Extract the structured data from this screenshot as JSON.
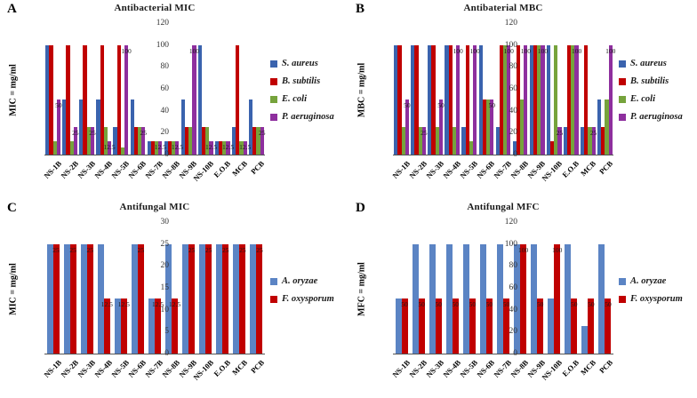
{
  "figure": {
    "background": "#ffffff",
    "axis_color": "#555555",
    "series_colors": {
      "S. aureus": "#3A63AE",
      "B. subtilis": "#C00000",
      "E. coli": "#76A33C",
      "P. aeruginosa": "#8E2F9E",
      "A. oryzae": "#5B84C4",
      "F. oxysporum": "#C00000"
    }
  },
  "chart_data": [
    {
      "type": "bar",
      "panel_letter": "A",
      "title": "Antibacterial MIC",
      "ylabel": "MIC = mg/ml",
      "ylim": [
        0,
        120
      ],
      "ytick_step": 20,
      "grid": false,
      "legend_position": "right",
      "categories": [
        "NS-1B",
        "NS-2B",
        "NS-3B",
        "NS-4B",
        "NS-5B",
        "NS-6B",
        "NS-7B",
        "NS-8B",
        "NS-9B",
        "NS-10B",
        "E.O.B",
        "MCB",
        "PCB"
      ],
      "series": [
        {
          "name": "S. aureus",
          "color": "#3A63AE",
          "values": [
            100,
            50,
            50,
            50,
            25,
            50,
            12.5,
            12.5,
            50,
            100,
            12.5,
            25,
            50
          ]
        },
        {
          "name": "B. subtilis",
          "color": "#C00000",
          "values": [
            100,
            100,
            100,
            100,
            100,
            25,
            12.5,
            12.5,
            25,
            25,
            12.5,
            100,
            25
          ]
        },
        {
          "name": "E. coli",
          "color": "#76A33C",
          "values": [
            12.5,
            12.5,
            25,
            25,
            6.25,
            25,
            12.5,
            12.5,
            25,
            25,
            12.5,
            12.5,
            25
          ]
        },
        {
          "name": "P. aeruginosa",
          "color": "#8E2F9E",
          "values": [
            50,
            25,
            25,
            12.5,
            100,
            25,
            12.5,
            12.5,
            100,
            12.5,
            12.5,
            12.5,
            25
          ]
        }
      ],
      "data_labels_series": "P. aeruginosa",
      "data_labels": [
        "50",
        "25",
        "25",
        "12.5",
        "100",
        "25",
        "12.5",
        "12.5",
        "100",
        "12.5",
        "12.5",
        "12.5",
        "25"
      ]
    },
    {
      "type": "bar",
      "panel_letter": "B",
      "title": "Antibaterial MBC",
      "ylabel": "MBC = mg/ml",
      "ylim": [
        0,
        120
      ],
      "ytick_step": 20,
      "grid": false,
      "legend_position": "right",
      "categories": [
        "NS-1B",
        "NS-2B",
        "NS-3B",
        "NS-4B",
        "NS-5B",
        "NS-6B",
        "NS-7B",
        "NS-8B",
        "NS-9B",
        "NS-10B",
        "E.O.B",
        "MCB",
        "PCB"
      ],
      "series": [
        {
          "name": "S. aureus",
          "color": "#3A63AE",
          "values": [
            100,
            100,
            100,
            100,
            25,
            100,
            25,
            12.5,
            100,
            100,
            25,
            25,
            50
          ]
        },
        {
          "name": "B. subtilis",
          "color": "#C00000",
          "values": [
            100,
            100,
            100,
            100,
            100,
            50,
            100,
            100,
            100,
            12.5,
            100,
            100,
            25
          ]
        },
        {
          "name": "E. coli",
          "color": "#76A33C",
          "values": [
            25,
            25,
            25,
            25,
            12.5,
            50,
            100,
            50,
            100,
            100,
            100,
            25,
            50
          ]
        },
        {
          "name": "P. aeruginosa",
          "color": "#8E2F9E",
          "values": [
            50,
            25,
            50,
            100,
            100,
            50,
            100,
            100,
            100,
            25,
            100,
            25,
            100
          ]
        }
      ],
      "data_labels_series": "P. aeruginosa",
      "data_labels": [
        "50",
        "25",
        "50",
        "100",
        "100",
        "50",
        "100",
        "100",
        "100",
        "25",
        "100",
        "25",
        "100"
      ]
    },
    {
      "type": "bar",
      "panel_letter": "C",
      "title": "Antifungal MIC",
      "ylabel": "MIC = mg/ml",
      "ylim": [
        0,
        30
      ],
      "ytick_step": 5,
      "grid": false,
      "legend_position": "right",
      "categories": [
        "NS-1B",
        "NS-2B",
        "NS-3B",
        "NS-4B",
        "NS-5B",
        "NS-6B",
        "NS-7B",
        "NS-8B",
        "NS-9B",
        "NS-10B",
        "E.O.B",
        "MCB",
        "PCB"
      ],
      "series": [
        {
          "name": "A. oryzae",
          "color": "#5B84C4",
          "values": [
            25,
            25,
            25,
            25,
            12.5,
            25,
            12.5,
            25,
            25,
            25,
            25,
            25,
            25
          ]
        },
        {
          "name": "F. oxysporum",
          "color": "#C00000",
          "values": [
            25,
            25,
            25,
            12.5,
            12.5,
            25,
            12.5,
            12.5,
            25,
            25,
            25,
            25,
            25
          ]
        }
      ],
      "data_labels_series": "F. oxysporum",
      "data_labels": [
        "25",
        "25",
        "25",
        "12.5",
        "12.5",
        "25",
        "12.5",
        "12.5",
        "25",
        "25",
        "25",
        "25",
        "25"
      ]
    },
    {
      "type": "bar",
      "panel_letter": "D",
      "title": "Antifungal MFC",
      "ylabel": "MFC = mg/ml",
      "ylim": [
        0,
        120
      ],
      "ytick_step": 20,
      "grid": false,
      "legend_position": "right",
      "categories": [
        "NS-1B",
        "NS-2B",
        "NS-3B",
        "NS-4B",
        "NS-5B",
        "NS-6B",
        "NS-7B",
        "NS-8B",
        "NS-9B",
        "NS-10B",
        "E.O.B",
        "MCB",
        "PCB"
      ],
      "series": [
        {
          "name": "A. oryzae",
          "color": "#5B84C4",
          "values": [
            50,
            100,
            100,
            100,
            100,
            100,
            100,
            100,
            100,
            50,
            100,
            25,
            100
          ]
        },
        {
          "name": "F. oxysporum",
          "color": "#C00000",
          "values": [
            50,
            50,
            50,
            50,
            50,
            50,
            50,
            100,
            50,
            100,
            50,
            50,
            50
          ]
        }
      ],
      "data_labels_series": "F. oxysporum",
      "data_labels": [
        "50",
        "50",
        "50",
        "50",
        "50",
        "50",
        "50",
        "100",
        "50",
        "100",
        "50",
        "50",
        "50"
      ]
    }
  ]
}
